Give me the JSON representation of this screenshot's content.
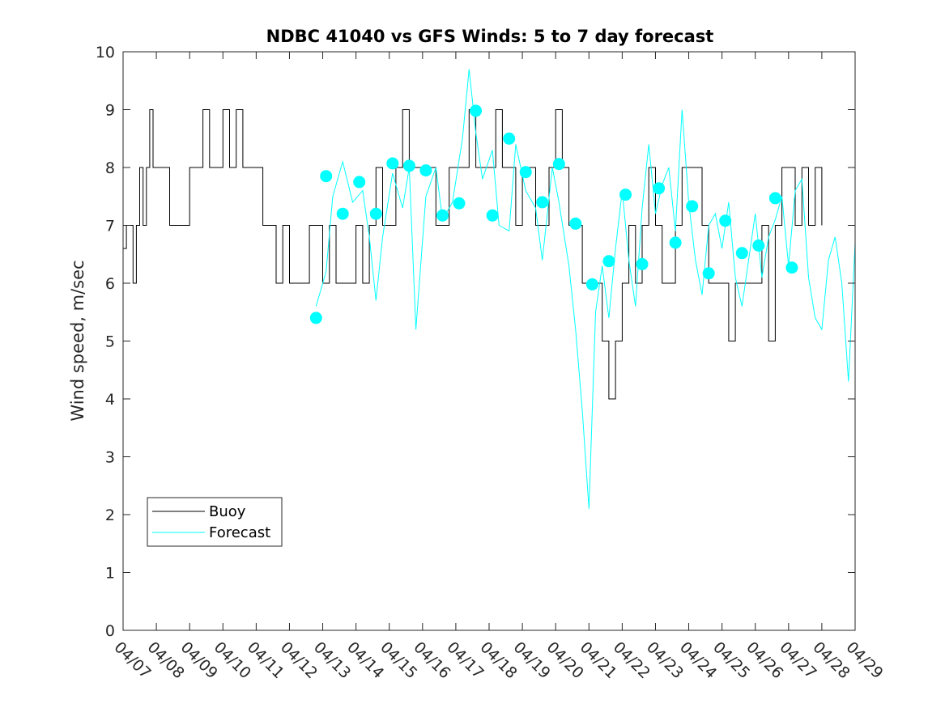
{
  "chart_data": {
    "type": "line",
    "title": "NDBC 41040 vs GFS Winds: 5 to 7 day forecast",
    "xlabel": "",
    "ylabel": "Wind speed, m/sec",
    "ylim": [
      0,
      10
    ],
    "xlim_days": [
      0,
      22
    ],
    "x_tick_labels": [
      "04/07",
      "04/08",
      "04/09",
      "04/10",
      "04/11",
      "04/12",
      "04/13",
      "04/14",
      "04/15",
      "04/16",
      "04/17",
      "04/18",
      "04/19",
      "04/20",
      "04/21",
      "04/22",
      "04/23",
      "04/24",
      "04/25",
      "04/26",
      "04/27",
      "04/28",
      "04/29"
    ],
    "y_ticks": [
      0,
      1,
      2,
      3,
      4,
      5,
      6,
      7,
      8,
      9,
      10
    ],
    "grid": false,
    "legend": {
      "placement": "bottom-left",
      "entries": [
        {
          "label": "Buoy",
          "color": "#000000"
        },
        {
          "label": "Forecast",
          "color": "#00ffff"
        }
      ]
    },
    "series": [
      {
        "name": "Buoy",
        "color": "#000000",
        "points": [
          [
            0,
            6.6
          ],
          [
            0.1,
            7
          ],
          [
            0.2,
            7
          ],
          [
            0.3,
            6
          ],
          [
            0.4,
            7
          ],
          [
            0.5,
            8
          ],
          [
            0.6,
            7
          ],
          [
            0.7,
            8
          ],
          [
            0.8,
            9
          ],
          [
            0.9,
            8
          ],
          [
            1.0,
            8
          ],
          [
            1.2,
            8
          ],
          [
            1.4,
            7
          ],
          [
            1.6,
            7
          ],
          [
            1.8,
            7
          ],
          [
            2.0,
            8
          ],
          [
            2.2,
            8
          ],
          [
            2.4,
            9
          ],
          [
            2.6,
            8
          ],
          [
            2.8,
            8
          ],
          [
            3.0,
            9
          ],
          [
            3.2,
            8
          ],
          [
            3.4,
            9
          ],
          [
            3.6,
            8
          ],
          [
            3.8,
            8
          ],
          [
            4.0,
            8
          ],
          [
            4.2,
            7
          ],
          [
            4.4,
            7
          ],
          [
            4.6,
            6
          ],
          [
            4.8,
            7
          ],
          [
            5.0,
            6
          ],
          [
            5.2,
            6
          ],
          [
            5.4,
            6
          ],
          [
            5.6,
            7
          ],
          [
            5.8,
            7
          ],
          [
            6.0,
            6
          ],
          [
            6.2,
            7
          ],
          [
            6.4,
            6
          ],
          [
            6.6,
            6
          ],
          [
            6.8,
            6
          ],
          [
            7.0,
            7
          ],
          [
            7.2,
            6
          ],
          [
            7.4,
            7
          ],
          [
            7.6,
            8
          ],
          [
            7.8,
            7
          ],
          [
            8.0,
            7
          ],
          [
            8.2,
            8
          ],
          [
            8.4,
            9
          ],
          [
            8.6,
            8
          ],
          [
            8.8,
            8
          ],
          [
            9.0,
            8
          ],
          [
            9.2,
            8
          ],
          [
            9.4,
            7
          ],
          [
            9.6,
            7
          ],
          [
            9.8,
            8
          ],
          [
            10.0,
            8
          ],
          [
            10.2,
            8
          ],
          [
            10.4,
            9
          ],
          [
            10.6,
            8
          ],
          [
            10.8,
            8
          ],
          [
            11.0,
            8
          ],
          [
            11.2,
            9
          ],
          [
            11.4,
            8
          ],
          [
            11.6,
            8
          ],
          [
            11.8,
            7
          ],
          [
            12.0,
            8
          ],
          [
            12.2,
            8
          ],
          [
            12.4,
            7
          ],
          [
            12.6,
            7
          ],
          [
            12.8,
            8
          ],
          [
            13.0,
            9
          ],
          [
            13.2,
            8
          ],
          [
            13.4,
            7
          ],
          [
            13.6,
            7
          ],
          [
            13.8,
            6
          ],
          [
            14.0,
            6
          ],
          [
            14.2,
            6
          ],
          [
            14.4,
            5
          ],
          [
            14.6,
            4
          ],
          [
            14.8,
            5
          ],
          [
            15.0,
            6
          ],
          [
            15.2,
            7
          ],
          [
            15.4,
            6
          ],
          [
            15.6,
            7
          ],
          [
            15.8,
            8
          ],
          [
            16.0,
            7
          ],
          [
            16.2,
            6
          ],
          [
            16.4,
            6
          ],
          [
            16.6,
            7
          ],
          [
            16.8,
            8
          ],
          [
            17.0,
            8
          ],
          [
            17.2,
            8
          ],
          [
            17.4,
            7
          ],
          [
            17.6,
            6
          ],
          [
            17.8,
            6
          ],
          [
            18.0,
            6
          ],
          [
            18.2,
            5
          ],
          [
            18.4,
            6
          ],
          [
            18.6,
            6
          ],
          [
            18.8,
            6
          ],
          [
            19.0,
            6
          ],
          [
            19.2,
            7
          ],
          [
            19.4,
            5
          ],
          [
            19.6,
            7
          ],
          [
            19.8,
            8
          ],
          [
            20.0,
            8
          ],
          [
            20.2,
            7
          ],
          [
            20.4,
            8
          ],
          [
            20.6,
            7
          ],
          [
            20.8,
            8
          ],
          [
            21.0,
            7
          ]
        ]
      },
      {
        "name": "Forecast",
        "color": "#00ffff",
        "points": [
          [
            5.8,
            5.6
          ],
          [
            6.1,
            6.2
          ],
          [
            6.3,
            7.5
          ],
          [
            6.6,
            8.1
          ],
          [
            6.9,
            7.4
          ],
          [
            7.2,
            7.6
          ],
          [
            7.4,
            6.8
          ],
          [
            7.6,
            5.7
          ],
          [
            7.8,
            6.8
          ],
          [
            8.1,
            7.9
          ],
          [
            8.4,
            7.3
          ],
          [
            8.6,
            8.0
          ],
          [
            8.8,
            5.2
          ],
          [
            9.1,
            7.5
          ],
          [
            9.4,
            8.0
          ],
          [
            9.6,
            7.1
          ],
          [
            9.9,
            7.4
          ],
          [
            10.2,
            8.5
          ],
          [
            10.4,
            9.7
          ],
          [
            10.6,
            8.6
          ],
          [
            10.8,
            7.8
          ],
          [
            11.1,
            8.3
          ],
          [
            11.3,
            7.0
          ],
          [
            11.6,
            6.9
          ],
          [
            11.8,
            8.4
          ],
          [
            12.1,
            7.6
          ],
          [
            12.4,
            7.3
          ],
          [
            12.6,
            6.4
          ],
          [
            12.9,
            8.0
          ],
          [
            13.1,
            7.4
          ],
          [
            13.4,
            6.3
          ],
          [
            13.6,
            5.2
          ],
          [
            13.8,
            3.8
          ],
          [
            14.0,
            2.1
          ],
          [
            14.2,
            5.5
          ],
          [
            14.4,
            6.3
          ],
          [
            14.6,
            5.4
          ],
          [
            14.8,
            6.6
          ],
          [
            15.0,
            7.6
          ],
          [
            15.2,
            6.4
          ],
          [
            15.4,
            5.6
          ],
          [
            15.6,
            7.3
          ],
          [
            15.8,
            8.4
          ],
          [
            16.0,
            7.2
          ],
          [
            16.2,
            7.7
          ],
          [
            16.4,
            8.0
          ],
          [
            16.6,
            6.9
          ],
          [
            16.8,
            9.0
          ],
          [
            17.0,
            7.4
          ],
          [
            17.2,
            6.4
          ],
          [
            17.4,
            5.8
          ],
          [
            17.6,
            7.0
          ],
          [
            17.8,
            7.2
          ],
          [
            18.0,
            6.6
          ],
          [
            18.2,
            7.4
          ],
          [
            18.4,
            6.1
          ],
          [
            18.6,
            5.6
          ],
          [
            18.8,
            6.4
          ],
          [
            19.0,
            7.2
          ],
          [
            19.2,
            6.1
          ],
          [
            19.4,
            6.8
          ],
          [
            19.6,
            7.1
          ],
          [
            19.8,
            7.5
          ],
          [
            20.0,
            6.3
          ],
          [
            20.2,
            7.6
          ],
          [
            20.4,
            7.8
          ],
          [
            20.6,
            6.1
          ],
          [
            20.8,
            5.4
          ],
          [
            21.0,
            5.2
          ],
          [
            21.2,
            6.4
          ],
          [
            21.4,
            6.8
          ],
          [
            21.6,
            6.0
          ],
          [
            21.8,
            4.3
          ],
          [
            22.0,
            6.7
          ]
        ]
      },
      {
        "name": "Forecast markers",
        "color": "#00ffff",
        "points": [
          [
            5.8,
            5.4
          ],
          [
            6.1,
            7.85
          ],
          [
            6.6,
            7.2
          ],
          [
            7.1,
            7.75
          ],
          [
            7.6,
            7.2
          ],
          [
            8.1,
            8.07
          ],
          [
            8.6,
            8.03
          ],
          [
            9.1,
            7.95
          ],
          [
            9.6,
            7.17
          ],
          [
            10.1,
            7.38
          ],
          [
            10.6,
            8.98
          ],
          [
            11.1,
            7.17
          ],
          [
            11.6,
            8.5
          ],
          [
            12.1,
            7.92
          ],
          [
            12.6,
            7.4
          ],
          [
            13.1,
            8.06
          ],
          [
            13.6,
            7.03
          ],
          [
            14.1,
            5.98
          ],
          [
            14.6,
            6.38
          ],
          [
            15.1,
            7.53
          ],
          [
            15.6,
            6.33
          ],
          [
            16.1,
            7.64
          ],
          [
            16.6,
            6.7
          ],
          [
            17.1,
            7.33
          ],
          [
            17.6,
            6.17
          ],
          [
            18.1,
            7.08
          ],
          [
            18.6,
            6.52
          ],
          [
            19.1,
            6.65
          ],
          [
            19.6,
            7.47
          ],
          [
            20.1,
            6.27
          ]
        ]
      }
    ]
  }
}
